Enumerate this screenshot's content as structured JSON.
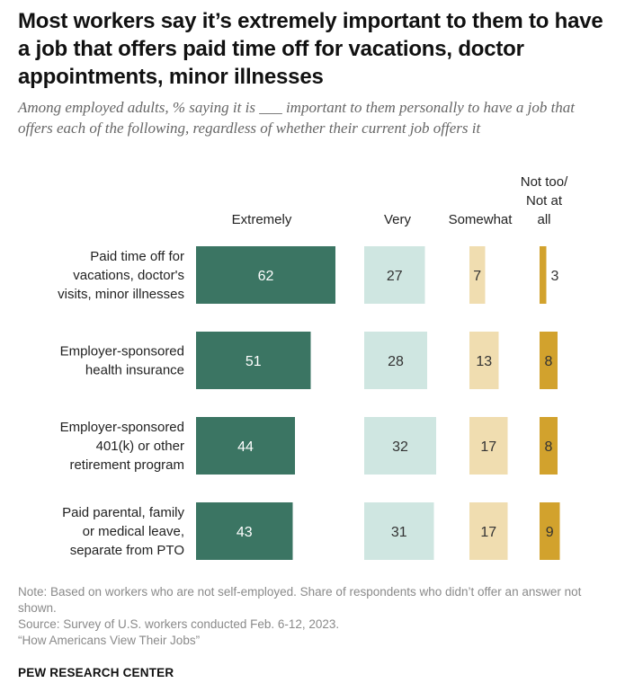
{
  "title": "Most workers say it’s extremely important to them to have a job that offers paid time off for vacations, doctor appointments, minor illnesses",
  "subtitle": "Among employed adults, % saying it is ___ important to them personally to have a job that offers each of the following, regardless of whether their current job offers it",
  "chart_data": {
    "type": "bar",
    "categories": [
      [
        "Paid time off for",
        "vacations, doctor's",
        "visits, minor illnesses"
      ],
      [
        "Employer-sponsored",
        "health insurance"
      ],
      [
        "Employer-sponsored",
        "401(k) or other",
        "retirement program"
      ],
      [
        "Paid parental, family",
        "or medical leave,",
        "separate from PTO"
      ]
    ],
    "series": [
      {
        "name": "Extremely",
        "header": [
          "Extremely"
        ],
        "values": [
          62,
          51,
          44,
          43
        ],
        "color": "#3b7563",
        "text_color": "#ffffff"
      },
      {
        "name": "Very",
        "header": [
          "Very"
        ],
        "values": [
          27,
          28,
          32,
          31
        ],
        "color": "#cfe6e1",
        "text_color": "#333333"
      },
      {
        "name": "Somewhat",
        "header": [
          "Somewhat"
        ],
        "values": [
          7,
          13,
          17,
          17
        ],
        "color": "#f0ddb0",
        "text_color": "#333333"
      },
      {
        "name": "Not too/ Not at all",
        "header": [
          "Not too/",
          "Not at",
          "all"
        ],
        "values": [
          3,
          8,
          8,
          9
        ],
        "color": "#d2a22d",
        "text_color": "#333333"
      }
    ]
  },
  "footer": {
    "note": "Note: Based on workers who are not self-employed. Share of respondents who didn’t offer an answer not shown.",
    "source": "Source: Survey of U.S. workers conducted Feb. 6-12, 2023.",
    "report": "“How Americans View Their Jobs”"
  },
  "brand": "PEW RESEARCH CENTER"
}
